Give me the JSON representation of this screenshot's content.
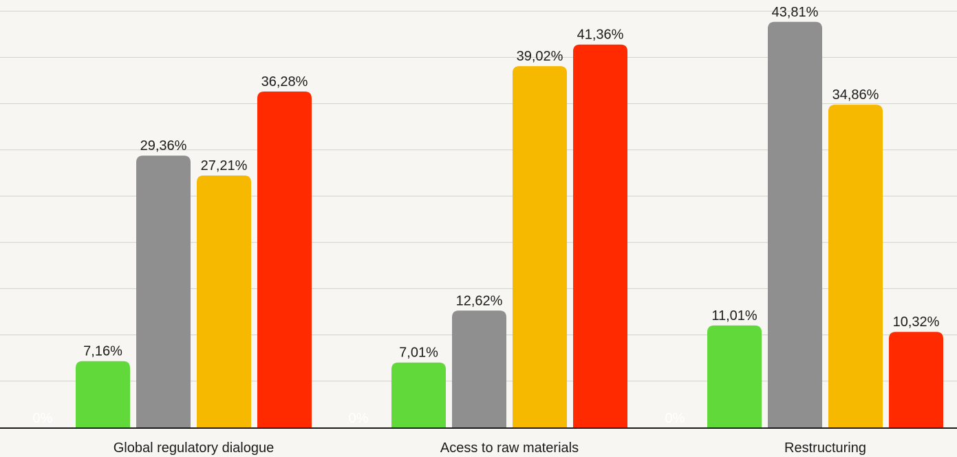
{
  "chart_data": {
    "type": "bar",
    "categories": [
      "Global regulatory dialogue",
      "Acess to raw materials",
      "Restructuring"
    ],
    "series": [
      {
        "color": "#62d93b",
        "values": [
          7.16,
          7.01,
          11.01
        ],
        "labels": [
          "7,16%",
          "7,01%",
          "11,01%"
        ]
      },
      {
        "color": "#8f8f8f",
        "values": [
          29.36,
          12.62,
          43.81
        ],
        "labels": [
          "29,36%",
          "12,62%",
          "43,81%"
        ]
      },
      {
        "color": "#f7b800",
        "values": [
          27.21,
          39.02,
          34.86
        ],
        "labels": [
          "27,21%",
          "39,02%",
          "34,86%"
        ]
      },
      {
        "color": "#ff2a00",
        "values": [
          36.28,
          41.36,
          10.32
        ],
        "labels": [
          "36,28%",
          "41,36%",
          "10,32%"
        ]
      }
    ],
    "zero_label": "0%",
    "ylim": [
      0,
      45
    ],
    "grid": true
  }
}
